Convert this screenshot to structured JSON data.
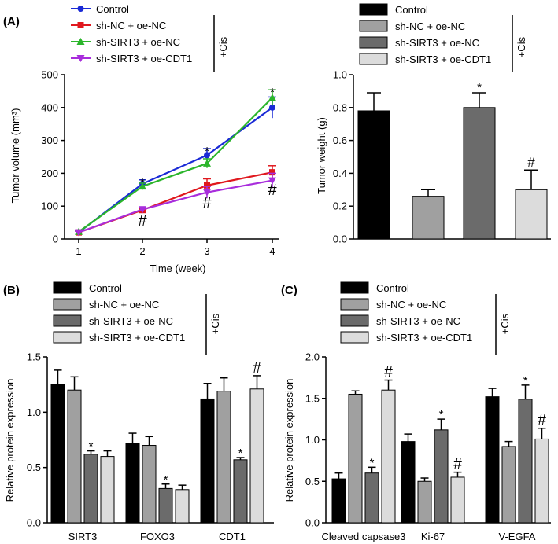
{
  "panels": [
    {
      "letter": "(A)",
      "cis_label": "+Cis",
      "chart_data": {
        "type": "line",
        "title": "",
        "xlabel": "Time (week)",
        "ylabel": "Tumor volume (mm³)",
        "x": [
          "1",
          "2",
          "3",
          "4"
        ],
        "ylim": [
          0,
          500
        ],
        "yticks": [
          "0",
          "100",
          "200",
          "300",
          "400",
          "500"
        ],
        "series": [
          {
            "name": "Control",
            "color": "#1a2ad6",
            "marker": "circle",
            "values": [
              20,
              168,
              255,
              400
            ],
            "errors": [
              4,
              12,
              20,
              32
            ]
          },
          {
            "name": "sh-NC + oe-NC",
            "color": "#e0181e",
            "marker": "square",
            "values": [
              20,
              88,
              163,
              203
            ],
            "errors": [
              4,
              8,
              20,
              20
            ]
          },
          {
            "name": "sh-SIRT3 + oe-NC",
            "color": "#2bb52b",
            "marker": "triangle-up",
            "values": [
              22,
              160,
              230,
              430
            ],
            "errors": [
              4,
              10,
              14,
              24
            ]
          },
          {
            "name": "sh-SIRT3 + oe-CDT1",
            "color": "#a82ddc",
            "marker": "triangle-down",
            "values": [
              20,
              90,
              142,
              178
            ],
            "errors": [
              4,
              8,
              18,
              22
            ]
          }
        ],
        "annotations": [
          {
            "text": "*",
            "x": "2",
            "y": 180
          },
          {
            "text": "*",
            "x": "3",
            "y": 275
          },
          {
            "text": "*",
            "x": "4",
            "y": 455
          },
          {
            "text": "#",
            "x": "2",
            "y": 55
          },
          {
            "text": "#",
            "x": "3",
            "y": 110
          },
          {
            "text": "#",
            "x": "4",
            "y": 148
          }
        ]
      }
    },
    {
      "letter": "",
      "cis_label": "+Cis",
      "chart_data": {
        "type": "bar",
        "title": "",
        "xlabel": "",
        "ylabel": "Tumor weight (g)",
        "categories": [
          "Control",
          "sh-NC + oe-NC",
          "sh-SIRT3 + oe-NC",
          "sh-SIRT3 + oe-CDT1"
        ],
        "colors": [
          "#000000",
          "#a0a0a0",
          "#6b6b6b",
          "#dcdcdc"
        ],
        "values": [
          0.78,
          0.26,
          0.8,
          0.3
        ],
        "errors": [
          0.11,
          0.04,
          0.09,
          0.12
        ],
        "ylim": [
          0,
          1.0
        ],
        "yticks": [
          "0.0",
          "0.2",
          "0.4",
          "0.6",
          "0.8",
          "1.0"
        ],
        "marks": [
          "",
          "",
          "*",
          "#"
        ]
      }
    },
    {
      "letter": "(B)",
      "cis_label": "+Cis",
      "chart_data": {
        "type": "bar",
        "title": "",
        "xlabel": "",
        "ylabel": "Relative protein expression",
        "categories": [
          "SIRT3",
          "FOXO3",
          "CDT1"
        ],
        "ylim": [
          0,
          1.5
        ],
        "yticks": [
          "0.0",
          "0.5",
          "1.0",
          "1.5"
        ],
        "series": [
          {
            "name": "Control",
            "color": "#000000",
            "values": [
              1.25,
              0.72,
              1.12
            ],
            "errors": [
              0.13,
              0.09,
              0.14
            ],
            "marks": [
              "",
              "",
              ""
            ]
          },
          {
            "name": "sh-NC + oe-NC",
            "color": "#a0a0a0",
            "values": [
              1.2,
              0.7,
              1.19
            ],
            "errors": [
              0.12,
              0.08,
              0.12
            ],
            "marks": [
              "",
              "",
              ""
            ]
          },
          {
            "name": "sh-SIRT3 + oe-NC",
            "color": "#6b6b6b",
            "values": [
              0.62,
              0.31,
              0.57
            ],
            "errors": [
              0.03,
              0.04,
              0.02
            ],
            "marks": [
              "*",
              "*",
              "*"
            ]
          },
          {
            "name": "sh-SIRT3 + oe-CDT1",
            "color": "#dcdcdc",
            "values": [
              0.6,
              0.3,
              1.21
            ],
            "errors": [
              0.05,
              0.04,
              0.12
            ],
            "marks": [
              "",
              "",
              "#"
            ]
          }
        ]
      }
    },
    {
      "letter": "(C)",
      "cis_label": "+Cis",
      "chart_data": {
        "type": "bar",
        "title": "",
        "xlabel": "",
        "ylabel": "Relative protein expression",
        "categories": [
          "Cleaved capsase3",
          "Ki-67",
          "V-EGFA"
        ],
        "ylim": [
          0,
          2.0
        ],
        "yticks": [
          "0.0",
          "0.5",
          "1.0",
          "1.5",
          "2.0"
        ],
        "series": [
          {
            "name": "Control",
            "color": "#000000",
            "values": [
              0.53,
              0.98,
              1.52
            ],
            "errors": [
              0.07,
              0.09,
              0.1
            ],
            "marks": [
              "",
              "",
              ""
            ]
          },
          {
            "name": "sh-NC + oe-NC",
            "color": "#a0a0a0",
            "values": [
              1.55,
              0.5,
              0.92
            ],
            "errors": [
              0.04,
              0.04,
              0.06
            ],
            "marks": [
              "",
              "",
              ""
            ]
          },
          {
            "name": "sh-SIRT3 + oe-NC",
            "color": "#6b6b6b",
            "values": [
              0.6,
              1.12,
              1.49
            ],
            "errors": [
              0.07,
              0.13,
              0.17
            ],
            "marks": [
              "*",
              "*",
              "*"
            ]
          },
          {
            "name": "sh-SIRT3 + oe-CDT1",
            "color": "#dcdcdc",
            "values": [
              1.6,
              0.55,
              1.01
            ],
            "errors": [
              0.12,
              0.06,
              0.13
            ],
            "marks": [
              "#",
              "#",
              "#"
            ]
          }
        ]
      }
    }
  ]
}
